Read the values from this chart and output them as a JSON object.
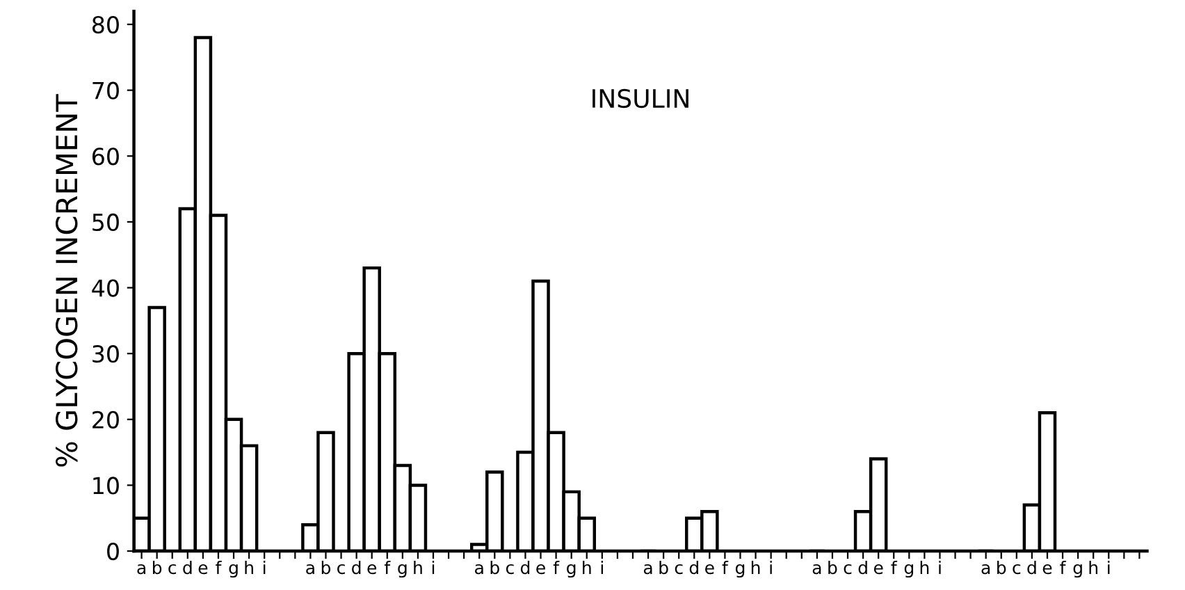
{
  "chart_data": {
    "type": "bar",
    "title": "INSULIN",
    "ylabel": "% GLYCOGEN INCREMENT",
    "categories": [
      "a",
      "b",
      "c",
      "d",
      "e",
      "f",
      "g",
      "h",
      "i",
      null,
      null,
      "a",
      "b",
      "c",
      "d",
      "e",
      "f",
      "g",
      "h",
      "i",
      null,
      null,
      "a",
      "b",
      "c",
      "d",
      "e",
      "f",
      "g",
      "h",
      "i",
      null,
      null,
      "a",
      "b",
      "c",
      "d",
      "e",
      "f",
      "g",
      "h",
      "i",
      null,
      null,
      "a",
      "b",
      "c",
      "d",
      "e",
      "f",
      "g",
      "h",
      "i",
      null,
      null,
      "a",
      "b",
      "c",
      "d",
      "e",
      "f",
      "g",
      "h",
      "i",
      null,
      null
    ],
    "values": [
      5,
      37,
      null,
      52,
      78,
      51,
      20,
      16,
      null,
      null,
      null,
      4,
      18,
      null,
      30,
      43,
      30,
      13,
      10,
      null,
      null,
      null,
      1,
      12,
      null,
      15,
      41,
      18,
      9,
      5,
      null,
      null,
      null,
      0,
      null,
      null,
      5,
      6,
      null,
      null,
      null,
      null,
      null,
      null,
      0,
      null,
      null,
      6,
      14,
      null,
      null,
      null,
      null,
      null,
      null,
      0,
      null,
      null,
      7,
      21,
      null,
      null,
      null,
      null,
      null,
      null
    ],
    "color": "#ffffff",
    "ylim": [
      0,
      82
    ],
    "yticks": [
      0,
      10,
      20,
      30,
      40,
      50,
      60,
      70,
      80
    ],
    "grid": false,
    "legend": false
  }
}
